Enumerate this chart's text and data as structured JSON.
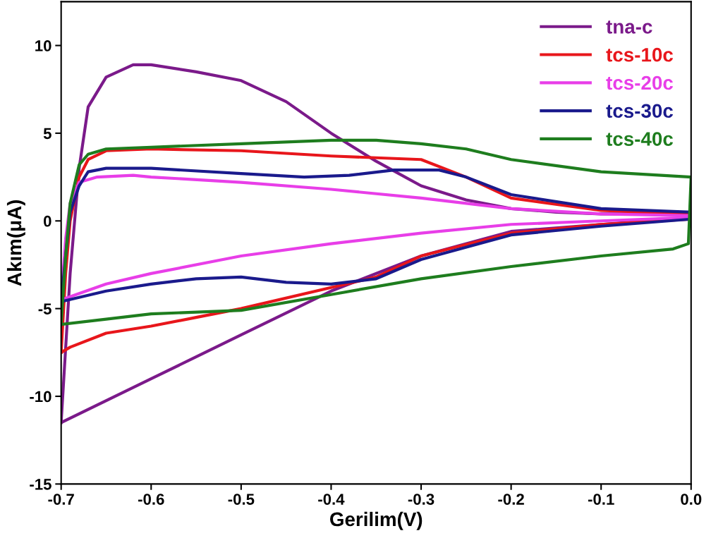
{
  "chart_data": {
    "type": "line",
    "xlabel": "Gerilim(V)",
    "ylabel": "Akım(μA)",
    "xlim": [
      -0.7,
      0.0
    ],
    "ylim": [
      -15,
      12.5
    ],
    "xticks": [
      {
        "value": -0.7,
        "label": "-0.7"
      },
      {
        "value": -0.6,
        "label": "-0.6"
      },
      {
        "value": -0.5,
        "label": "-0.5"
      },
      {
        "value": -0.4,
        "label": "-0.4"
      },
      {
        "value": -0.3,
        "label": "-0.3"
      },
      {
        "value": -0.2,
        "label": "-0.2"
      },
      {
        "value": -0.1,
        "label": "-0.1"
      },
      {
        "value": 0.0,
        "label": "0.0"
      }
    ],
    "yticks": [
      -15,
      -10,
      -5,
      0,
      5,
      10
    ],
    "legend": "top right",
    "grid": false,
    "marker": "none",
    "line_style": "solid",
    "series": [
      {
        "name": "tna-c",
        "color": "#7b1a8a",
        "x": [
          -0.7,
          -0.69,
          -0.68,
          -0.67,
          -0.65,
          -0.62,
          -0.6,
          -0.55,
          -0.5,
          -0.45,
          -0.4,
          -0.35,
          -0.3,
          -0.25,
          -0.2,
          -0.15,
          -0.1,
          0.0
        ],
        "values": [
          -11.5,
          -3,
          3,
          6.5,
          8.2,
          8.9,
          8.9,
          8.5,
          8.0,
          6.8,
          5.0,
          3.4,
          2.0,
          1.2,
          0.7,
          0.5,
          0.4,
          0.4
        ]
      },
      {
        "color": "#7b1a8a",
        "x": [
          -0.7,
          -0.6,
          -0.5,
          -0.4,
          -0.3,
          -0.2,
          -0.1,
          0.0
        ],
        "values": [
          -11.5,
          -9.0,
          -6.5,
          -4.0,
          -2.0,
          -0.6,
          -0.2,
          0.2
        ]
      },
      {
        "name": "tcs-10c",
        "color": "#e8161b",
        "x": [
          -0.7,
          -0.695,
          -0.69,
          -0.68,
          -0.67,
          -0.65,
          -0.6,
          -0.5,
          -0.4,
          -0.3,
          -0.25,
          -0.2,
          -0.1,
          0.0
        ],
        "values": [
          -7.5,
          -3,
          0,
          2.5,
          3.5,
          4.0,
          4.1,
          4.0,
          3.7,
          3.5,
          2.5,
          1.3,
          0.6,
          0.4
        ]
      },
      {
        "color": "#e8161b",
        "x": [
          -0.7,
          -0.69,
          -0.65,
          -0.6,
          -0.55,
          -0.5,
          -0.4,
          -0.35,
          -0.3,
          -0.2,
          -0.1,
          0.0
        ],
        "values": [
          -7.5,
          -7.2,
          -6.4,
          -6.0,
          -5.5,
          -5.0,
          -3.8,
          -3.2,
          -2.0,
          -0.7,
          -0.2,
          0.1
        ]
      },
      {
        "name": "tcs-20c",
        "color": "#e83ee8",
        "x": [
          -0.7,
          -0.695,
          -0.69,
          -0.68,
          -0.66,
          -0.62,
          -0.6,
          -0.5,
          -0.4,
          -0.3,
          -0.2,
          -0.1,
          0.0
        ],
        "values": [
          -4.5,
          -1,
          1,
          2.2,
          2.5,
          2.6,
          2.5,
          2.2,
          1.8,
          1.3,
          0.7,
          0.4,
          0.3
        ]
      },
      {
        "color": "#e83ee8",
        "x": [
          -0.7,
          -0.65,
          -0.6,
          -0.5,
          -0.4,
          -0.3,
          -0.2,
          -0.1,
          0.0
        ],
        "values": [
          -4.5,
          -3.6,
          -3.0,
          -2.0,
          -1.3,
          -0.7,
          -0.2,
          0.0,
          0.2
        ]
      },
      {
        "name": "tcs-30c",
        "color": "#1a1a8c",
        "x": [
          -0.7,
          -0.695,
          -0.69,
          -0.68,
          -0.67,
          -0.65,
          -0.6,
          -0.5,
          -0.43,
          -0.38,
          -0.33,
          -0.28,
          -0.25,
          -0.2,
          -0.1,
          0.0
        ],
        "values": [
          -4.6,
          -2,
          0.5,
          2.0,
          2.8,
          3.0,
          3.0,
          2.7,
          2.5,
          2.6,
          2.9,
          2.9,
          2.5,
          1.5,
          0.7,
          0.5
        ]
      },
      {
        "color": "#1a1a8c",
        "x": [
          -0.7,
          -0.65,
          -0.6,
          -0.55,
          -0.5,
          -0.45,
          -0.4,
          -0.35,
          -0.3,
          -0.2,
          -0.1,
          0.0
        ],
        "values": [
          -4.6,
          -4.0,
          -3.6,
          -3.3,
          -3.2,
          -3.5,
          -3.6,
          -3.3,
          -2.2,
          -0.8,
          -0.3,
          0.1
        ]
      },
      {
        "name": "tcs-40c",
        "color": "#1e7d1e",
        "x": [
          -0.7,
          -0.695,
          -0.69,
          -0.68,
          -0.67,
          -0.65,
          -0.6,
          -0.5,
          -0.4,
          -0.35,
          -0.3,
          -0.25,
          -0.2,
          -0.1,
          0.0
        ],
        "values": [
          -5.9,
          -2,
          1,
          3.2,
          3.8,
          4.1,
          4.2,
          4.4,
          4.6,
          4.6,
          4.4,
          4.1,
          3.5,
          2.8,
          2.5
        ]
      },
      {
        "color": "#1e7d1e",
        "x": [
          -0.7,
          -0.65,
          -0.6,
          -0.5,
          -0.4,
          -0.3,
          -0.2,
          -0.1,
          -0.02,
          -0.003,
          0.0
        ],
        "values": [
          -5.9,
          -5.6,
          -5.3,
          -5.1,
          -4.2,
          -3.3,
          -2.6,
          -2.0,
          -1.6,
          -1.3,
          2.5
        ]
      }
    ]
  }
}
